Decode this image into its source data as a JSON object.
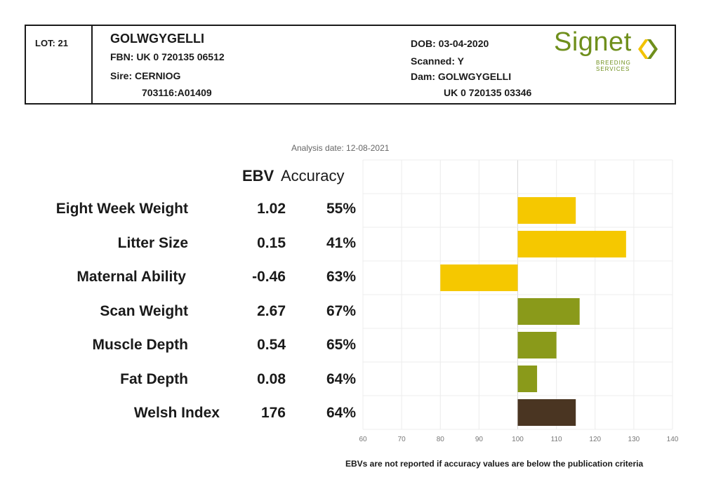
{
  "header": {
    "lot": "LOT: 21",
    "name": "GOLWGYGELLI",
    "fbn": "FBN: UK 0 720135 06512",
    "sire": "Sire: CERNIOG",
    "sire_id": "703116:A01409",
    "dob": "DOB: 03-04-2020",
    "scanned": "Scanned: Y",
    "dam": "Dam: GOLWGYGELLI",
    "dam_id": "UK 0 720135 03346",
    "logo_word": "Signet",
    "logo_sub": "BREEDING SERVICES",
    "logo_color": "#6f8f1c",
    "logo_accent": "#f2c200"
  },
  "analysis_date": "Analysis date: 12-08-2021",
  "column_headers": {
    "ebv": "EBV",
    "accuracy": "Accuracy"
  },
  "footnote": "EBVs are not reported if accuracy values are below the publication criteria",
  "rows": [
    {
      "label": "Eight Week Weight",
      "ebv": "1.02",
      "accuracy": "55%"
    },
    {
      "label": "Litter Size",
      "ebv": "0.15",
      "accuracy": "41%"
    },
    {
      "label": "Maternal Ability",
      "ebv": "-0.46",
      "accuracy": "63%"
    },
    {
      "label": "Scan Weight",
      "ebv": "2.67",
      "accuracy": "67%"
    },
    {
      "label": "Muscle Depth",
      "ebv": "0.54",
      "accuracy": "65%"
    },
    {
      "label": "Fat Depth",
      "ebv": "0.08",
      "accuracy": "64%"
    },
    {
      "label": "Welsh Index",
      "ebv": "176",
      "accuracy": "64%"
    }
  ],
  "chart_data": {
    "type": "bar",
    "orientation": "horizontal",
    "baseline": 100,
    "categories": [
      "Eight Week Weight",
      "Litter Size",
      "Maternal Ability",
      "Scan Weight",
      "Muscle Depth",
      "Fat Depth",
      "Welsh Index"
    ],
    "values": [
      115,
      128,
      80,
      116,
      110,
      105,
      115
    ],
    "colors": [
      "#f5c800",
      "#f5c800",
      "#f5c800",
      "#8a9a1a",
      "#8a9a1a",
      "#8a9a1a",
      "#4a3522"
    ],
    "xlim": [
      60,
      140
    ],
    "xticks": [
      "60",
      "70",
      "80",
      "90",
      "100",
      "110",
      "120",
      "130",
      "140"
    ],
    "grid": true
  }
}
